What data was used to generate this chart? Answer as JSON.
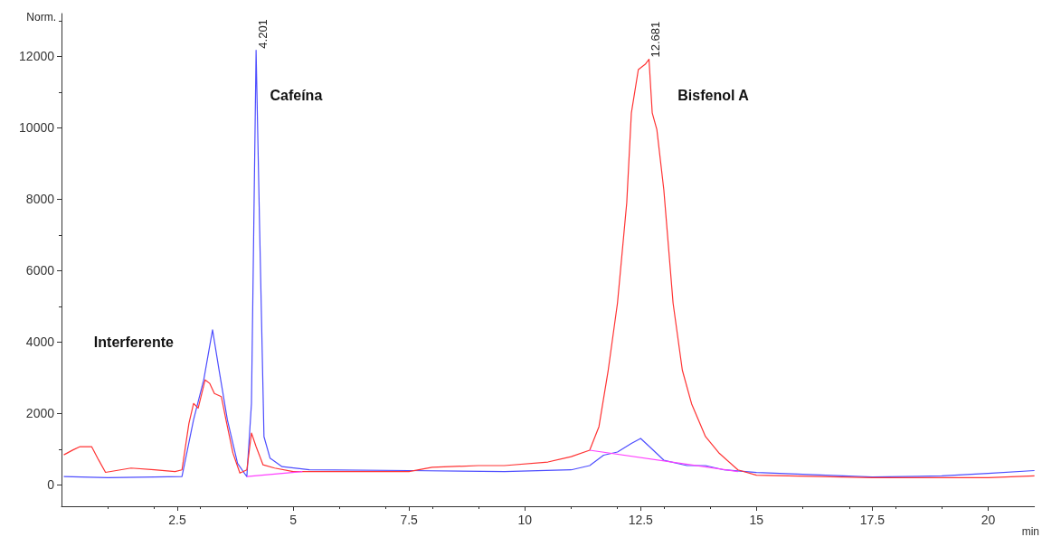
{
  "chart_data": {
    "type": "line",
    "xlabel": "min",
    "ylabel": "Norm.",
    "xlim": [
      0,
      21
    ],
    "ylim": [
      -600,
      13200
    ],
    "xticks": [
      2.5,
      5,
      7.5,
      10,
      12.5,
      15,
      17.5,
      20
    ],
    "yticks": [
      0,
      2000,
      4000,
      6000,
      8000,
      10000,
      12000
    ],
    "grid": false,
    "marker": "none",
    "line_style": "solid",
    "series": [
      {
        "color": "#4d4dff",
        "x": [
          0.05,
          1.0,
          2.0,
          2.6,
          2.85,
          3.07,
          3.26,
          3.4,
          3.58,
          3.8,
          4.0,
          4.1,
          4.2,
          4.28,
          4.37,
          4.5,
          4.76,
          5.35,
          7.5,
          9.56,
          11.0,
          11.4,
          11.7,
          12.0,
          12.3,
          12.5,
          12.7,
          13.0,
          13.5,
          13.9,
          14.3,
          15.0,
          17.5,
          19.0,
          20.0,
          21.0
        ],
        "values": [
          230,
          200,
          220,
          230,
          1820,
          2940,
          4340,
          3220,
          1820,
          600,
          230,
          2280,
          12170,
          6950,
          1350,
          750,
          510,
          420,
          400,
          370,
          420,
          540,
          830,
          920,
          1160,
          1300,
          1060,
          690,
          540,
          540,
          420,
          345,
          220,
          250,
          320,
          400
        ]
      },
      {
        "color": "#ff3333",
        "x": [
          0.05,
          0.25,
          0.4,
          0.65,
          0.8,
          0.95,
          1.5,
          2.0,
          2.45,
          2.6,
          2.75,
          2.85,
          2.95,
          3.1,
          3.2,
          3.3,
          3.45,
          3.55,
          3.7,
          3.85,
          4.0,
          4.1,
          4.2,
          4.35,
          4.6,
          5.0,
          7.5,
          8.0,
          9.0,
          9.56,
          10.5,
          11.0,
          11.4,
          11.6,
          11.8,
          12.0,
          12.2,
          12.3,
          12.45,
          12.6,
          12.68,
          12.75,
          12.85,
          13.0,
          13.2,
          13.4,
          13.6,
          13.9,
          14.2,
          14.6,
          15.0,
          17.5,
          19.0,
          20.0,
          21.0
        ],
        "values": [
          840,
          980,
          1070,
          1070,
          700,
          350,
          470,
          420,
          370,
          420,
          1720,
          2280,
          2150,
          2940,
          2840,
          2560,
          2470,
          1820,
          890,
          330,
          420,
          1450,
          1070,
          560,
          470,
          370,
          370,
          490,
          540,
          540,
          640,
          790,
          970,
          1630,
          3210,
          5090,
          7900,
          10420,
          11630,
          11780,
          11920,
          10420,
          9950,
          8270,
          5090,
          3210,
          2270,
          1350,
          880,
          420,
          270,
          200,
          200,
          200,
          250
        ]
      },
      {
        "color": "#ff40ff",
        "x": [
          4.0,
          5.2
        ],
        "values": [
          230,
          370
        ]
      },
      {
        "color": "#ff40ff",
        "x": [
          11.4,
          14.6
        ],
        "values": [
          970,
          370
        ]
      }
    ],
    "annotations": [
      {
        "text": "4.201",
        "x": 4.201,
        "y": 12170
      },
      {
        "text": "12.681",
        "x": 12.681,
        "y": 11920
      },
      "Interferente",
      "Cafeína",
      "Bisfenol A"
    ]
  }
}
